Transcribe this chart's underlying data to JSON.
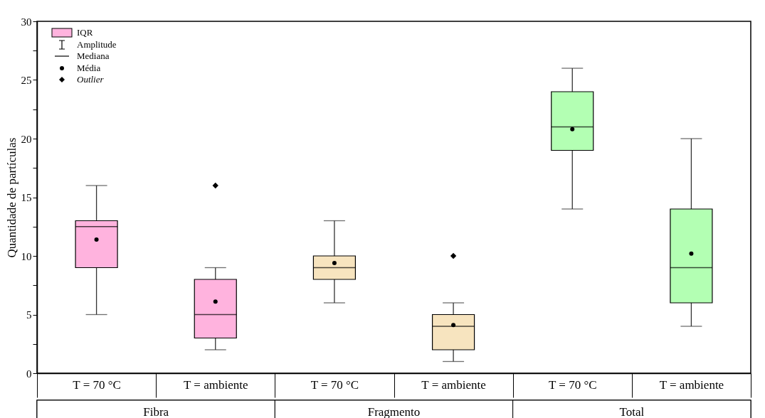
{
  "chart_data": {
    "type": "box",
    "ylabel": "Quantidade de partículas",
    "categories": [
      "T = 70 °C",
      "T = ambiente",
      "T = 70 °C",
      "T = ambiente",
      "T = 70 °C",
      "T = ambiente"
    ],
    "series": [
      {
        "name": "Fibra",
        "color": "#ffb3de",
        "boxes": [
          {
            "low": 5,
            "q1": 9,
            "median": 12.5,
            "q3": 13,
            "high": 16,
            "mean": 11.4
          },
          {
            "low": 2,
            "q1": 3,
            "median": 5,
            "q3": 8,
            "high": 9,
            "mean": 6.1,
            "outliers": [
              16
            ]
          },
          null,
          null,
          null,
          null
        ]
      },
      {
        "name": "Fragmento",
        "color": "#f7e4bf",
        "boxes": [
          null,
          null,
          {
            "low": 6,
            "q1": 8,
            "median": 9,
            "q3": 10,
            "high": 13,
            "mean": 9.4
          },
          {
            "low": 1,
            "q1": 2,
            "median": 4,
            "q3": 5,
            "high": 6,
            "mean": 4.1,
            "outliers": [
              10
            ]
          },
          null,
          null
        ]
      },
      {
        "name": "Total",
        "color": "#b3ffb3",
        "boxes": [
          null,
          null,
          null,
          null,
          {
            "low": 14,
            "q1": 19,
            "median": 21,
            "q3": 24,
            "high": 26,
            "mean": 20.8
          },
          {
            "low": 4,
            "q1": 6,
            "median": 9,
            "q3": 14,
            "high": 20,
            "mean": 10.2
          }
        ]
      }
    ],
    "ylim": [
      0,
      30
    ],
    "yticks": [
      0,
      {
        "value": 2.5,
        "label": null
      },
      5,
      {
        "value": 7.5,
        "label": null
      },
      10,
      {
        "value": 12.5,
        "label": null
      },
      15,
      {
        "value": 17.5,
        "label": null
      },
      20,
      {
        "value": 22.5,
        "label": null
      },
      25,
      {
        "value": 27.5,
        "label": null
      },
      30
    ],
    "grid": false,
    "legend": "bottom",
    "annotations": [
      "IQR",
      "Amplitude",
      "Mediana",
      "Média",
      "Outlier"
    ]
  }
}
